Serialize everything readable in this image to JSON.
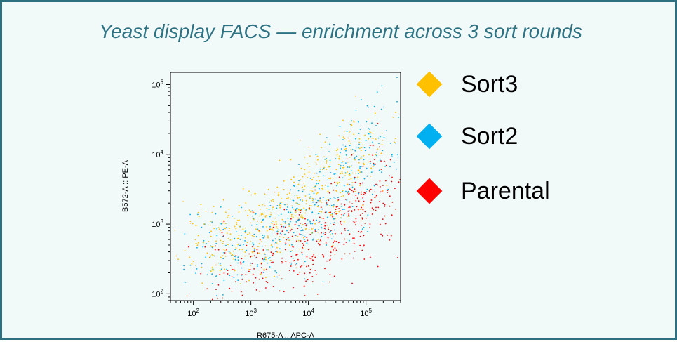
{
  "slide_title": "Yeast display FACS — enrichment across 3 sort rounds",
  "chart_data": {
    "type": "scatter",
    "title": "",
    "xlabel": "R675-A :: APC-A",
    "ylabel": "B572-A :: PE-A",
    "xscale": "log",
    "yscale": "log",
    "xlim": [
      40,
      400000
    ],
    "ylim": [
      80,
      150000
    ],
    "x_ticks": [
      {
        "value": 100,
        "base": "10",
        "exp": "2"
      },
      {
        "value": 1000,
        "base": "10",
        "exp": "3"
      },
      {
        "value": 10000,
        "base": "10",
        "exp": "4"
      },
      {
        "value": 100000,
        "base": "10",
        "exp": "5"
      }
    ],
    "y_ticks": [
      {
        "value": 100,
        "base": "10",
        "exp": "2"
      },
      {
        "value": 1000,
        "base": "10",
        "exp": "3"
      },
      {
        "value": 10000,
        "base": "10",
        "exp": "4"
      },
      {
        "value": 100000,
        "base": "10",
        "exp": "5"
      }
    ],
    "grid": false,
    "legend_position": "right",
    "series": [
      {
        "name": "Sort3",
        "color": "#ffc000",
        "description": "diagonal cloud from ~(100,500) to ~(150000,30000), densest near (10000,2000)",
        "points": [
          [
            120,
            500
          ],
          [
            300,
            600
          ],
          [
            800,
            700
          ],
          [
            2000,
            900
          ],
          [
            4000,
            1200
          ],
          [
            8000,
            1800
          ],
          [
            15000,
            2800
          ],
          [
            30000,
            5000
          ],
          [
            60000,
            9000
          ],
          [
            120000,
            20000
          ]
        ]
      },
      {
        "name": "Sort2",
        "color": "#00b0f0",
        "description": "diagonal cloud shifted right and below Sort3, from ~(100,300) to ~(300000,30000)",
        "points": [
          [
            150,
            350
          ],
          [
            400,
            420
          ],
          [
            1500,
            600
          ],
          [
            5000,
            800
          ],
          [
            12000,
            1300
          ],
          [
            25000,
            2500
          ],
          [
            50000,
            5000
          ],
          [
            100000,
            12000
          ],
          [
            250000,
            30000
          ]
        ]
      },
      {
        "name": "Parental",
        "color": "#ff0000",
        "description": "low PE-A population spread along the bottom, extending to high APC-A",
        "points": [
          [
            200,
            200
          ],
          [
            1000,
            250
          ],
          [
            5000,
            300
          ],
          [
            10000,
            400
          ],
          [
            20000,
            600
          ],
          [
            40000,
            900
          ],
          [
            80000,
            1500
          ],
          [
            150000,
            2500
          ],
          [
            300000,
            5000
          ]
        ]
      }
    ]
  }
}
